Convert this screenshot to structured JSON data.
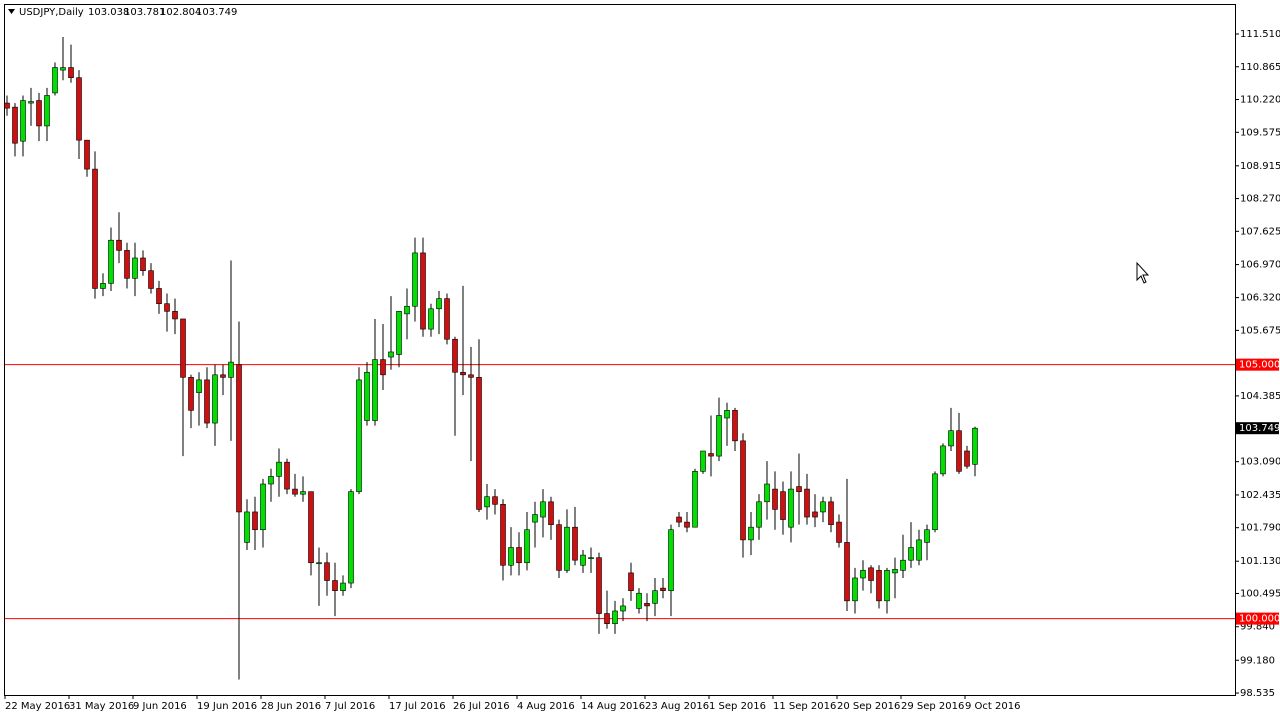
{
  "chart_data": {
    "type": "candlestick",
    "title": "USDJPY,Daily",
    "up_color": "#00e000",
    "down_color": "#d01010",
    "wick_color": "#000000",
    "ylim": [
      98.496,
      112.081
    ],
    "yticks": [
      {
        "value": 111.51,
        "label": "111.510"
      },
      110.865,
      {
        "value": 110.22,
        "label": "110.220"
      },
      109.575,
      108.915,
      {
        "value": 108.27,
        "label": "108.270"
      },
      107.625,
      {
        "value": 106.97,
        "label": "106.970"
      },
      {
        "value": 106.32,
        "label": "106.320"
      },
      105.675,
      104.385,
      {
        "value": 103.09,
        "label": "103.090"
      },
      102.435,
      {
        "value": 101.79,
        "label": "101.790"
      },
      {
        "value": 101.13,
        "label": "101.130"
      },
      100.495,
      {
        "value": 99.84,
        "label": "99.840"
      },
      {
        "value": 99.18,
        "label": "99.180"
      },
      98.535
    ],
    "hlines": [
      {
        "value": 105,
        "label": "105.000",
        "color": "#ff0000"
      },
      {
        "value": 100,
        "label": "100.000",
        "color": "#ff0000"
      }
    ],
    "categories": [
      "22 May 2016",
      null,
      null,
      null,
      null,
      null,
      null,
      null,
      "31 May 2016",
      null,
      null,
      null,
      null,
      null,
      null,
      null,
      "9 Jun 2016",
      null,
      null,
      null,
      null,
      null,
      null,
      null,
      "19 Jun 2016",
      null,
      null,
      null,
      null,
      null,
      null,
      null,
      "28 Jun 2016",
      null,
      null,
      null,
      null,
      null,
      null,
      null,
      "7 Jul 2016",
      null,
      null,
      null,
      null,
      null,
      null,
      null,
      "17 Jul 2016",
      null,
      null,
      null,
      null,
      null,
      null,
      null,
      "26 Jul 2016",
      null,
      null,
      null,
      null,
      null,
      null,
      null,
      "4 Aug 2016",
      null,
      null,
      null,
      null,
      null,
      null,
      null,
      "14 Aug 2016",
      null,
      null,
      null,
      null,
      null,
      null,
      null,
      "23 Aug 2016",
      null,
      null,
      null,
      null,
      null,
      null,
      null,
      "1 Sep 2016",
      null,
      null,
      null,
      null,
      null,
      null,
      null,
      "11 Sep 2016",
      null,
      null,
      null,
      null,
      null,
      null,
      null,
      "20 Sep 2016",
      null,
      null,
      null,
      null,
      null,
      null,
      null,
      "29 Sep 2016",
      null,
      null,
      null,
      null,
      null,
      null,
      null,
      "9 Oct 2016",
      null
    ],
    "open": [
      110.15,
      110.07,
      109.4,
      110.15,
      110.2,
      109.7,
      110.35,
      110.8,
      110.85,
      110.65,
      109.42,
      108.85,
      106.5,
      106.6,
      107.45,
      107.25,
      106.7,
      107.1,
      106.85,
      106.5,
      106.2,
      106.05,
      105.9,
      104.75,
      104.45,
      104.7,
      103.85,
      104.8,
      104.75,
      105.0,
      101.5,
      102.1,
      101.75,
      102.65,
      102.8,
      103.08,
      102.55,
      102.45,
      102.5,
      101.1,
      101.1,
      100.75,
      100.55,
      100.7,
      102.5,
      103.9,
      103.9,
      105.1,
      105.15,
      105.2,
      106.0,
      106.15,
      107.2,
      105.7,
      106.1,
      106.3,
      105.5,
      104.85,
      104.8,
      104.75,
      102.2,
      102.4,
      102.25,
      101.05,
      101.4,
      101.1,
      101.9,
      102.0,
      102.3,
      101.85,
      100.95,
      101.8,
      101.05,
      101.2,
      101.2,
      100.1,
      99.9,
      100.15,
      100.9,
      100.2,
      100.3,
      100.3,
      100.6,
      100.55,
      102.0,
      101.9,
      101.8,
      102.9,
      103.25,
      103.2,
      103.95,
      104.1,
      103.5,
      101.55,
      101.8,
      102.3,
      102.55,
      102.5,
      101.8,
      102.6,
      102.55,
      102.1,
      102.1,
      102.3,
      101.9,
      101.5,
      100.35,
      100.8,
      101.0,
      100.95,
      100.35,
      100.9,
      100.95,
      101.15,
      101.15,
      101.5,
      101.75,
      102.85,
      103.4,
      103.7,
      103.3,
      103.038
    ],
    "high": [
      110.3,
      110.15,
      110.3,
      110.45,
      110.35,
      110.45,
      110.95,
      111.45,
      111.3,
      110.8,
      109.42,
      109.2,
      106.8,
      107.7,
      108.0,
      107.4,
      107.4,
      107.25,
      107.0,
      106.65,
      106.4,
      106.3,
      105.9,
      104.8,
      104.85,
      104.95,
      105.0,
      105.0,
      107.05,
      105.85,
      102.35,
      102.4,
      102.75,
      102.95,
      103.35,
      103.15,
      102.85,
      102.8,
      102.5,
      101.4,
      101.3,
      101.1,
      100.85,
      102.55,
      104.95,
      105.05,
      105.9,
      105.8,
      106.35,
      106.05,
      106.5,
      107.5,
      107.5,
      106.2,
      106.45,
      106.4,
      105.55,
      106.55,
      105.35,
      105.5,
      102.65,
      102.55,
      102.35,
      101.8,
      101.7,
      102.1,
      102.3,
      102.55,
      102.4,
      101.95,
      102.15,
      102.2,
      101.35,
      101.4,
      101.3,
      100.55,
      100.35,
      100.4,
      101.1,
      100.6,
      100.5,
      100.8,
      100.8,
      101.85,
      102.1,
      102.1,
      102.95,
      103.3,
      104.0,
      104.35,
      104.25,
      104.15,
      103.65,
      102.1,
      102.45,
      103.1,
      102.9,
      102.7,
      102.9,
      103.25,
      102.85,
      102.45,
      102.4,
      102.4,
      102.05,
      102.75,
      101.0,
      101.15,
      101.05,
      101.05,
      101.0,
      101.2,
      101.65,
      101.9,
      101.75,
      101.85,
      102.9,
      103.45,
      104.15,
      104.05,
      103.4,
      103.781
    ],
    "low": [
      109.9,
      109.1,
      109.1,
      109.7,
      109.4,
      109.4,
      110.3,
      110.6,
      110.55,
      109.05,
      108.7,
      106.3,
      106.35,
      106.45,
      107.0,
      106.5,
      106.35,
      106.75,
      106.4,
      106.0,
      105.65,
      105.6,
      103.2,
      103.75,
      103.8,
      103.75,
      103.4,
      104.4,
      103.5,
      98.8,
      101.35,
      101.35,
      101.4,
      102.3,
      102.4,
      102.45,
      102.4,
      102.3,
      100.85,
      100.25,
      100.45,
      100.05,
      100.45,
      100.6,
      102.45,
      103.8,
      103.8,
      104.5,
      104.9,
      104.95,
      105.5,
      105.85,
      105.55,
      105.55,
      105.6,
      105.4,
      103.6,
      104.4,
      103.1,
      102.1,
      101.95,
      102.05,
      100.75,
      100.85,
      100.85,
      100.95,
      101.4,
      101.6,
      101.55,
      100.8,
      100.9,
      101.05,
      100.9,
      100.9,
      99.7,
      99.8,
      99.7,
      99.95,
      100.35,
      100.1,
      99.95,
      100.05,
      100.4,
      100.05,
      101.8,
      101.7,
      101.8,
      102.85,
      102.8,
      103.1,
      103.4,
      103.3,
      101.2,
      101.25,
      101.55,
      101.95,
      101.75,
      101.65,
      101.5,
      101.85,
      101.85,
      101.8,
      101.9,
      101.7,
      101.4,
      100.15,
      100.1,
      100.55,
      100.5,
      100.2,
      100.1,
      100.4,
      100.8,
      101.0,
      101.05,
      101.15,
      101.7,
      102.8,
      103.3,
      102.85,
      102.95,
      102.804
    ],
    "close": [
      110.05,
      109.36,
      110.2,
      110.18,
      109.7,
      110.3,
      110.85,
      110.85,
      110.65,
      109.42,
      108.85,
      106.5,
      106.6,
      107.45,
      107.25,
      106.7,
      107.1,
      106.85,
      106.5,
      106.2,
      106.05,
      105.9,
      104.75,
      104.1,
      104.7,
      103.85,
      104.8,
      104.75,
      105.05,
      102.1,
      102.1,
      101.75,
      102.65,
      102.8,
      103.08,
      102.55,
      102.45,
      102.5,
      101.1,
      101.1,
      100.75,
      100.55,
      100.7,
      102.5,
      104.7,
      104.85,
      105.1,
      104.8,
      105.25,
      106.05,
      106.15,
      107.2,
      105.7,
      106.1,
      106.3,
      105.5,
      104.85,
      104.8,
      104.75,
      102.15,
      102.4,
      102.25,
      101.05,
      101.4,
      101.1,
      101.75,
      102.05,
      102.3,
      101.85,
      100.95,
      101.8,
      101.15,
      101.25,
      101.2,
      100.1,
      99.9,
      100.15,
      100.25,
      100.55,
      100.5,
      100.25,
      100.55,
      100.55,
      101.75,
      101.9,
      101.8,
      102.9,
      103.3,
      103.2,
      104.0,
      104.1,
      103.5,
      101.55,
      101.8,
      102.3,
      102.65,
      102.15,
      101.95,
      102.55,
      102.5,
      102.0,
      102.0,
      102.3,
      101.85,
      101.5,
      100.35,
      100.8,
      100.95,
      100.75,
      100.35,
      100.95,
      100.97,
      101.15,
      101.4,
      101.55,
      101.75,
      102.85,
      103.4,
      103.7,
      102.9,
      103.0,
      103.749
    ]
  }
}
